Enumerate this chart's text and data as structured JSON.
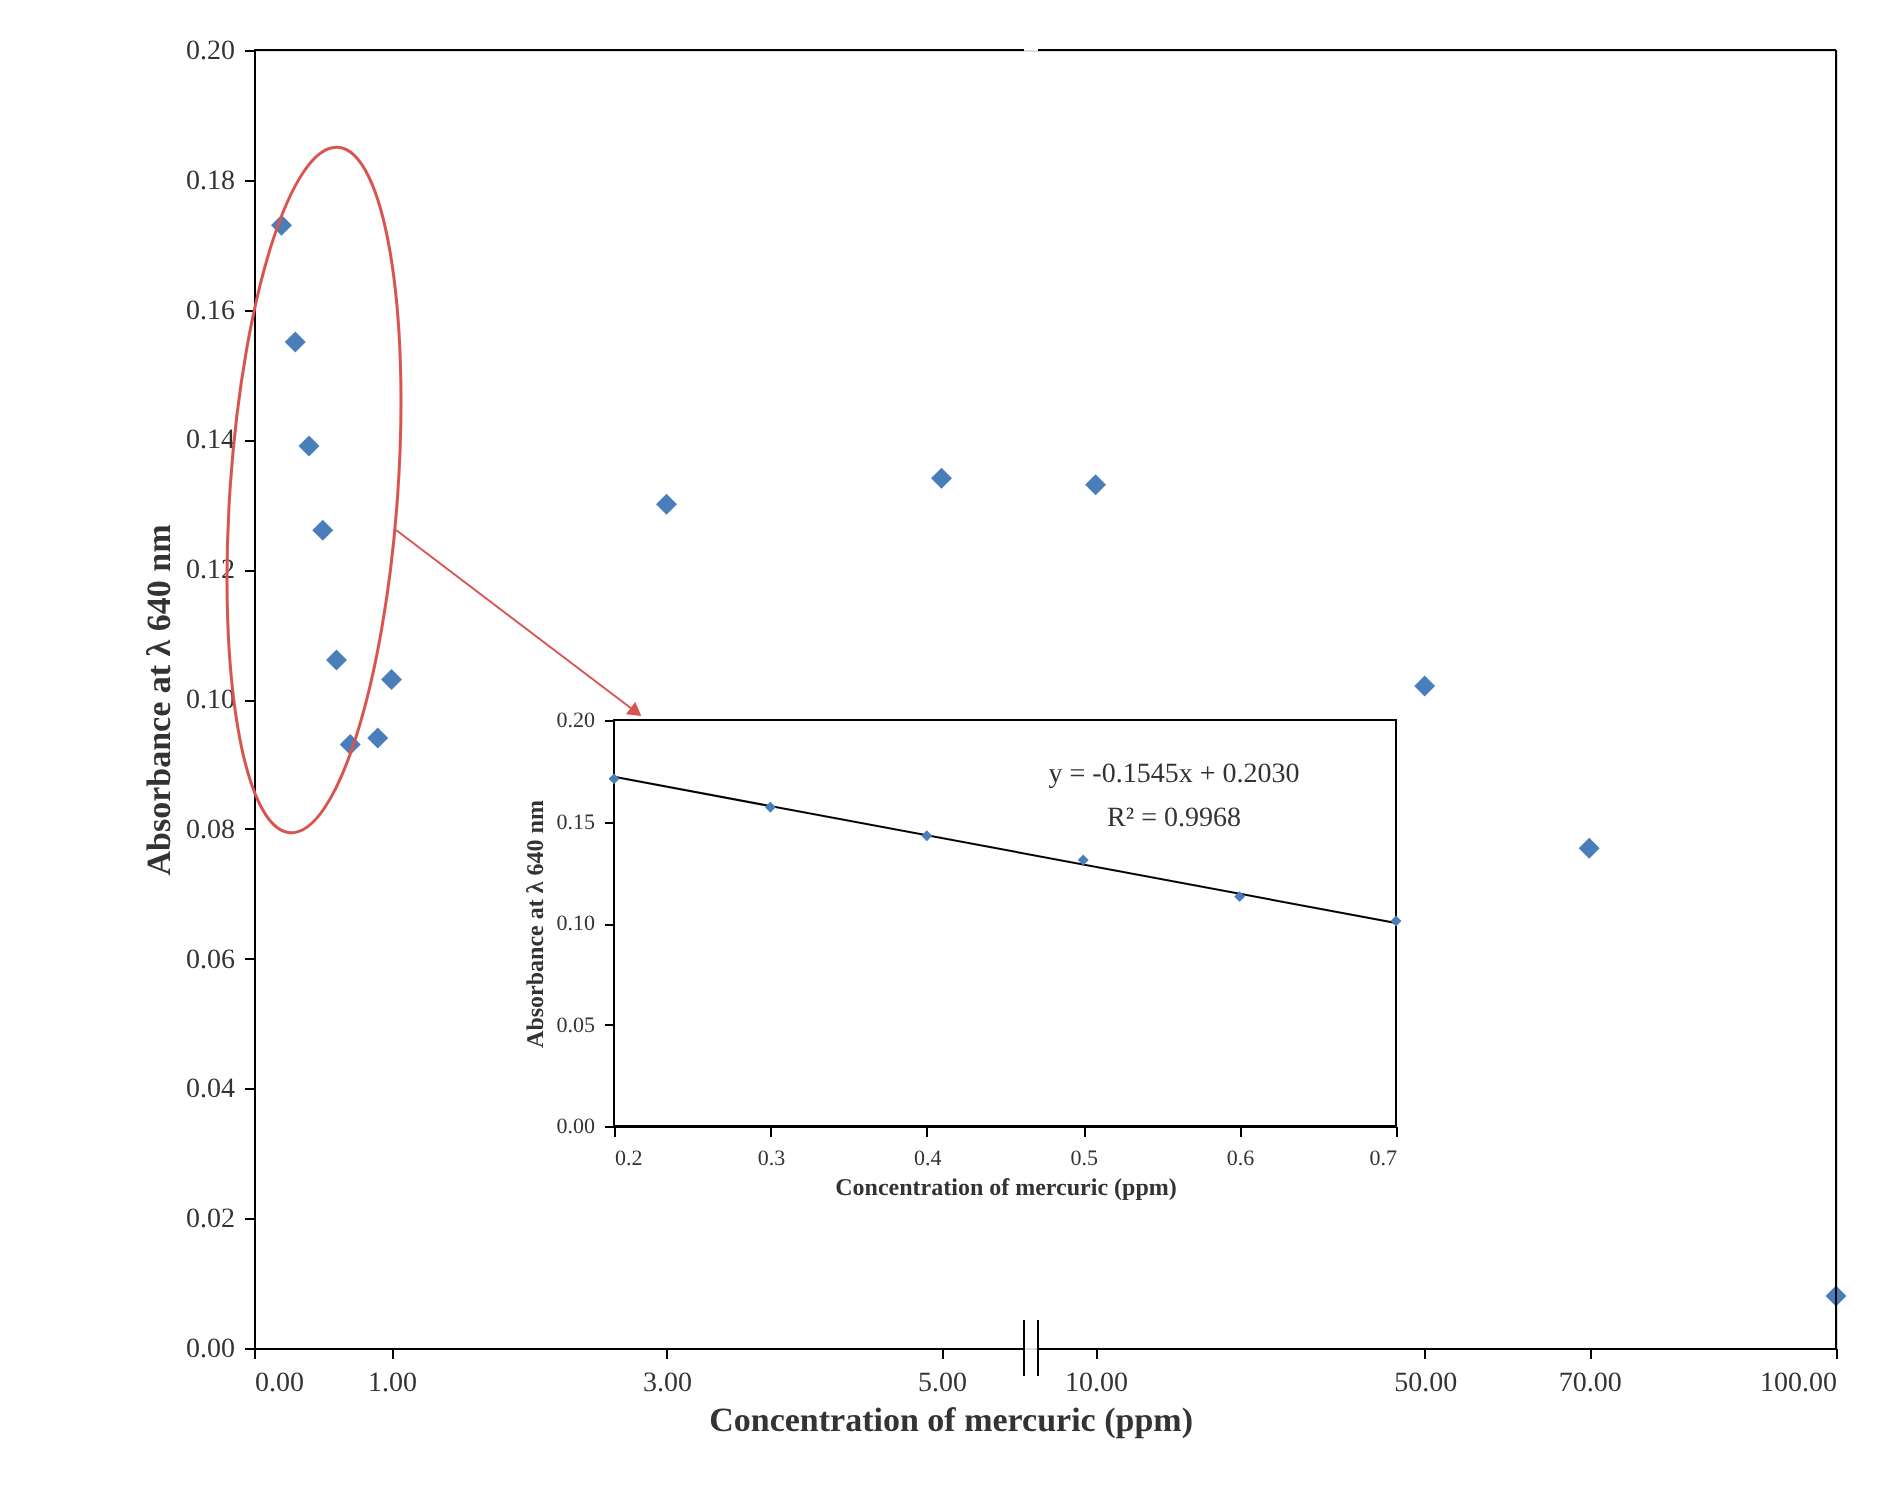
{
  "chart_data": [
    {
      "type": "scatter",
      "xlabel": "Concentration of mercuric (ppm)",
      "ylabel": "Absorbance at λ 640 nm",
      "marker": "diamond",
      "grid": false,
      "x": [
        0.2,
        0.3,
        0.4,
        0.5,
        0.6,
        0.7,
        0.9,
        1,
        3,
        5
      ],
      "values": [
        0.173,
        0.155,
        0.139,
        0.126,
        0.106,
        0.093,
        0.094,
        0.103,
        0.13,
        0.134
      ],
      "color": "#4a7ebb",
      "xlim": [
        0,
        5.6
      ],
      "xticks": [
        {
          "value": 0,
          "label": "0.00"
        },
        {
          "value": 1,
          "label": "1.00"
        },
        {
          "value": 3,
          "label": "3.00"
        },
        {
          "value": 5,
          "label": "5.00"
        }
      ],
      "ylim": [
        0,
        0.2
      ],
      "yticks": [
        {
          "value": 0,
          "label": "0.00"
        },
        {
          "value": 0.02,
          "label": "0.02"
        },
        {
          "value": 0.04,
          "label": "0.04"
        },
        {
          "value": 0.06,
          "label": "0.06"
        },
        {
          "value": 0.08,
          "label": "0.08"
        },
        {
          "value": 0.1,
          "label": "0.10"
        },
        {
          "value": 0.12,
          "label": "0.12"
        },
        {
          "value": 0.14,
          "label": "0.14"
        },
        {
          "value": 0.16,
          "label": "0.16"
        },
        {
          "value": 0.18,
          "label": "0.18"
        },
        {
          "value": 0.2,
          "label": "0.20"
        }
      ]
    },
    {
      "type": "scatter",
      "marker": "diamond",
      "grid": false,
      "tick_labels": "x",
      "x": [
        10,
        50,
        70,
        100
      ],
      "values": [
        0.133,
        0.102,
        0.077,
        0.008
      ],
      "color": "#4a7ebb",
      "xlim": [
        3,
        100
      ],
      "xticks": [
        {
          "value": 10,
          "label": "10.00"
        },
        {
          "value": 50,
          "label": "50.00"
        },
        {
          "value": 70,
          "label": "70.00"
        },
        {
          "value": 100,
          "label": "100.00"
        }
      ],
      "ylim": [
        0,
        0.2
      ]
    },
    {
      "type": "scatter",
      "xlabel": "Concentration of mercuric (ppm)",
      "ylabel": "Absorbance at λ 640 nm",
      "grid": false,
      "series": [
        {
          "type": "scatter",
          "marker": "diamond",
          "color": "#4a7ebb",
          "x": [
            0.2,
            0.3,
            0.4,
            0.5,
            0.6,
            0.7
          ],
          "values": [
            0.171,
            0.157,
            0.143,
            0.131,
            0.113,
            0.101
          ]
        },
        {
          "type": "line",
          "marker": "none",
          "color": "#000000",
          "x": [
            0.2,
            0.7
          ],
          "values": [
            0.172,
            0.1
          ]
        }
      ],
      "xlim": [
        0.2,
        0.7
      ],
      "xticks": [
        0.2,
        0.3,
        0.4,
        0.5,
        0.6,
        0.7
      ],
      "ylim": [
        0,
        0.2
      ],
      "yticks": [
        {
          "value": 0,
          "label": "0.00"
        },
        {
          "value": 0.05,
          "label": "0.05"
        },
        {
          "value": 0.1,
          "label": "0.10"
        },
        {
          "value": 0.15,
          "label": "0.15"
        },
        {
          "value": 0.2,
          "label": "0.20"
        }
      ],
      "annotations": [
        "y = -0.1545x + 0.2030",
        "R² = 0.9968"
      ]
    }
  ]
}
